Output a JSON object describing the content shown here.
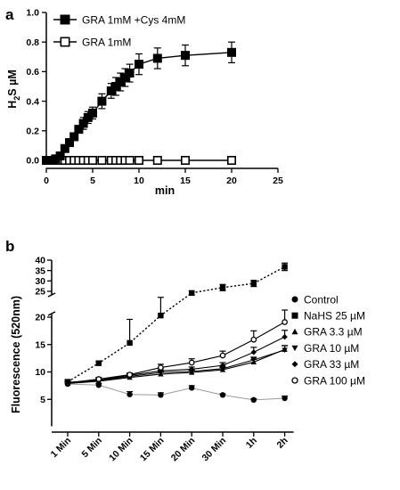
{
  "chart_data": [
    {
      "panel": "a",
      "type": "line",
      "xlabel": "min",
      "ylabel": "H2S µM",
      "ylabel_main": "H",
      "ylabel_sub": "2",
      "ylabel_rest": "S µM",
      "xlim": [
        0,
        25
      ],
      "ylim": [
        0,
        1.0
      ],
      "xticks": [
        0,
        5,
        10,
        15,
        20,
        25
      ],
      "yticks": [
        0.0,
        0.2,
        0.4,
        0.6,
        0.8,
        1.0
      ],
      "xtick_labels": [
        "0",
        "5",
        "10",
        "15",
        "20",
        "25"
      ],
      "ytick_labels": [
        "0.0",
        "0.2",
        "0.4",
        "0.6",
        "0.8",
        "1.0"
      ],
      "legend_position": "top-left",
      "series": [
        {
          "name": "GRA 1mM +Cys 4mM",
          "marker": "filled-square",
          "x": [
            0,
            0.5,
            1,
            1.5,
            2,
            2.5,
            3,
            3.5,
            4,
            4.5,
            5,
            6,
            7,
            7.5,
            8,
            8.5,
            9,
            10,
            12,
            15,
            20
          ],
          "y": [
            0.0,
            0.0,
            0.01,
            0.03,
            0.08,
            0.12,
            0.16,
            0.21,
            0.25,
            0.29,
            0.32,
            0.4,
            0.47,
            0.5,
            0.53,
            0.56,
            0.59,
            0.65,
            0.69,
            0.71,
            0.73
          ],
          "err": [
            0,
            0,
            0,
            0,
            0,
            0,
            0,
            0,
            0.04,
            0.04,
            0.04,
            0.05,
            0.05,
            0.06,
            0.06,
            0.06,
            0.06,
            0.07,
            0.07,
            0.07,
            0.07
          ]
        },
        {
          "name": "GRA 1mM",
          "marker": "open-square",
          "x": [
            0,
            0.5,
            1,
            1.5,
            2,
            2.5,
            3,
            3.5,
            4,
            4.5,
            5,
            6,
            7,
            7.5,
            8,
            8.5,
            9,
            10,
            12,
            15,
            20
          ],
          "y": [
            0,
            0,
            0,
            0,
            0,
            0,
            0,
            0,
            0,
            0,
            0,
            0,
            0,
            0,
            0,
            0,
            0,
            0,
            0,
            0,
            0
          ]
        }
      ]
    },
    {
      "panel": "b",
      "type": "line",
      "xlabel": "",
      "ylabel": "Fluorescence (520nm)",
      "categories": [
        "1 Min",
        "5 Min",
        "10 Min",
        "15 Min",
        "20 Min",
        "30 Min",
        "1h",
        "2h"
      ],
      "y_axis_break": true,
      "ylim_lower": [
        0,
        20
      ],
      "ylim_upper": [
        25,
        40
      ],
      "yticks_lower": [
        5,
        10,
        15,
        20
      ],
      "yticks_upper": [
        25,
        30,
        35,
        40
      ],
      "ytick_labels_lower": [
        "5",
        "10",
        "15",
        "20"
      ],
      "ytick_labels_upper": [
        "25",
        "30",
        "35",
        "40"
      ],
      "legend_position": "right",
      "series": [
        {
          "name": "Control",
          "marker": "filled-circle",
          "line": "thin-gray",
          "values": [
            7.8,
            7.6,
            5.9,
            5.8,
            7.1,
            5.8,
            4.9,
            5.2
          ],
          "err": [
            0.3,
            0.3,
            0.5,
            0.4,
            0.4,
            0.2,
            0.2,
            0.4
          ]
        },
        {
          "name": "NaHS 25 µM",
          "marker": "filled-square",
          "line": "dotted",
          "values": [
            8.2,
            11.6,
            15.3,
            20.3,
            24.2,
            26.8,
            28.8,
            36.8
          ],
          "err": [
            0.4,
            0.3,
            4.3,
            1.8,
            1.0,
            1.5,
            1.5,
            1.8
          ]
        },
        {
          "name": "GRA 3.3 µM",
          "marker": "filled-triangle-up",
          "line": "solid",
          "values": [
            7.9,
            8.3,
            9.0,
            9.6,
            9.9,
            10.4,
            11.8,
            14.1
          ],
          "err": [
            0.3,
            0.3,
            0.3,
            0.4,
            0.4,
            0.4,
            0.5,
            0.7
          ]
        },
        {
          "name": "GRA 10 µM",
          "marker": "filled-triangle-down",
          "line": "solid",
          "values": [
            8.0,
            8.4,
            9.2,
            9.9,
            10.1,
            10.6,
            12.2,
            14.0
          ],
          "err": [
            0.3,
            0.3,
            0.3,
            0.4,
            0.4,
            0.4,
            0.5,
            0.8
          ]
        },
        {
          "name": "GRA 33 µM",
          "marker": "filled-diamond",
          "line": "solid",
          "values": [
            8.1,
            8.5,
            9.4,
            10.2,
            10.5,
            11.2,
            13.6,
            16.4
          ],
          "err": [
            0.3,
            0.3,
            0.3,
            0.4,
            0.4,
            0.5,
            0.9,
            1.2
          ]
        },
        {
          "name": "GRA 100 µM",
          "marker": "open-circle",
          "line": "solid",
          "values": [
            8.0,
            8.7,
            9.5,
            10.8,
            11.7,
            13.0,
            15.9,
            19.1
          ],
          "err": [
            0.3,
            0.3,
            0.3,
            0.6,
            0.7,
            0.8,
            1.6,
            2.2
          ]
        }
      ]
    }
  ]
}
